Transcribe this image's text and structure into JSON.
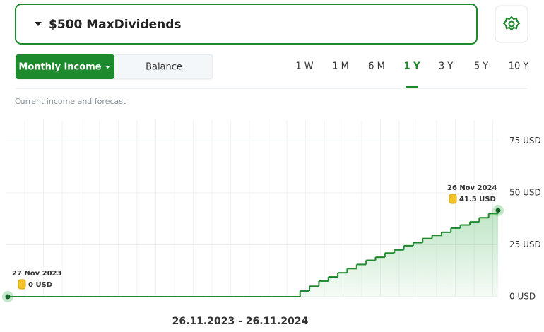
{
  "header": {
    "title": "$500 MaxDividends"
  },
  "toggle": {
    "options": [
      "Monthly Income",
      "Balance"
    ],
    "active": 0
  },
  "tabs": {
    "options": [
      "1 W",
      "1 M",
      "6 M",
      "1 Y",
      "3 Y",
      "5 Y",
      "10 Y"
    ],
    "active": 3
  },
  "chart_data": {
    "type": "step-area",
    "subtitle": "Current income and forecast",
    "x_label": "26.11.2023 - 26.11.2024",
    "color": "#1e8a2e",
    "categories": [
      "27 Nov 2023",
      null,
      null,
      null,
      null,
      null,
      null,
      null,
      null,
      null,
      null,
      null,
      null,
      null,
      null,
      null,
      null,
      null,
      null,
      null,
      null,
      null,
      null,
      null,
      null,
      null,
      null,
      null,
      null,
      null,
      null,
      null,
      null,
      null,
      null,
      null,
      null,
      null,
      null,
      null,
      null,
      null,
      null,
      null,
      null,
      null,
      null,
      null,
      null,
      null,
      null,
      null,
      "26 Nov 2024"
    ],
    "values": [
      0,
      0,
      0,
      0,
      0,
      0,
      0,
      0,
      0,
      0,
      0,
      0,
      0,
      0,
      0,
      0,
      0,
      0,
      0,
      0,
      0,
      0,
      0,
      0,
      0,
      0,
      0,
      0,
      0,
      0,
      0,
      2.7,
      5,
      7.5,
      9.5,
      11.5,
      13.5,
      15.5,
      17.5,
      19,
      21,
      22.5,
      24.5,
      26,
      28,
      29.5,
      31,
      33,
      34.5,
      36,
      38,
      40,
      41.5
    ],
    "value_labels": [
      "0 USD",
      null,
      null,
      null,
      null,
      null,
      null,
      null,
      null,
      null,
      null,
      null,
      null,
      null,
      null,
      null,
      null,
      null,
      null,
      null,
      null,
      null,
      null,
      null,
      null,
      null,
      null,
      null,
      null,
      null,
      null,
      null,
      null,
      null,
      null,
      null,
      null,
      null,
      null,
      null,
      null,
      null,
      null,
      null,
      null,
      null,
      null,
      null,
      null,
      null,
      null,
      null,
      "41.5 USD"
    ],
    "ylim": [
      0,
      85
    ],
    "yticks": [
      {
        "value": 0,
        "label": "0 USD"
      },
      {
        "value": 25,
        "label": "25 USD"
      },
      {
        "value": 50,
        "label": "50 USD"
      },
      {
        "value": 75,
        "label": "75 USD"
      }
    ],
    "grid": true
  }
}
